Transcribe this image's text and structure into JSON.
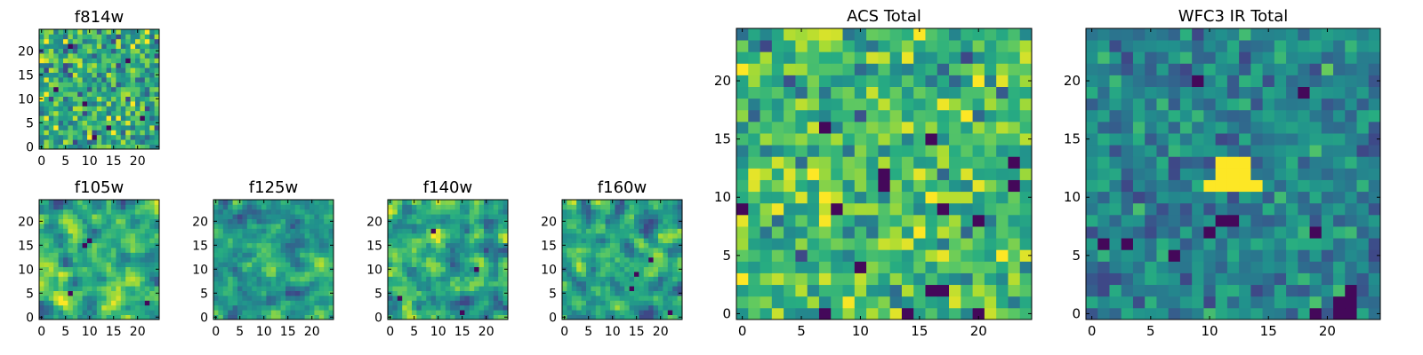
{
  "figure": {
    "description_free": true
  },
  "chart_data": [
    {
      "type": "heatmap",
      "title": "f814w",
      "grid_size": 25,
      "xlim": [
        -0.5,
        24.5
      ],
      "ylim": [
        -0.5,
        24.5
      ],
      "xticks": [
        0,
        5,
        10,
        15,
        20
      ],
      "yticks": [
        0,
        5,
        10,
        15,
        20
      ],
      "colormap": "viridis",
      "texture": "fine-noise",
      "seed": 11,
      "mean": 0.62,
      "std": 0.18,
      "smooth": 0,
      "dark_pixels": [
        [
          3,
          12
        ],
        [
          9,
          9
        ],
        [
          14,
          4
        ],
        [
          21,
          6
        ],
        [
          6,
          21
        ],
        [
          18,
          18
        ],
        [
          11,
          2
        ]
      ]
    },
    {
      "type": "heatmap",
      "title": "f105w",
      "grid_size": 25,
      "xlim": [
        -0.5,
        24.5
      ],
      "ylim": [
        -0.5,
        24.5
      ],
      "xticks": [
        0,
        5,
        10,
        15,
        20
      ],
      "yticks": [
        0,
        5,
        10,
        15,
        20
      ],
      "colormap": "viridis",
      "texture": "smooth-noise",
      "seed": 23,
      "mean": 0.62,
      "std": 0.2,
      "smooth": 1,
      "dark_pixels": [
        [
          9,
          15
        ],
        [
          10,
          16
        ],
        [
          22,
          3
        ],
        [
          6,
          5
        ]
      ]
    },
    {
      "type": "heatmap",
      "title": "f125w",
      "grid_size": 25,
      "xlim": [
        -0.5,
        24.5
      ],
      "ylim": [
        -0.5,
        24.5
      ],
      "xticks": [
        0,
        5,
        10,
        15,
        20
      ],
      "yticks": [
        0,
        5,
        10,
        15,
        20
      ],
      "colormap": "viridis",
      "texture": "smooth-noise",
      "seed": 37,
      "mean": 0.56,
      "std": 0.18,
      "smooth": 1,
      "dark_pixels": []
    },
    {
      "type": "heatmap",
      "title": "f140w",
      "grid_size": 25,
      "xlim": [
        -0.5,
        24.5
      ],
      "ylim": [
        -0.5,
        24.5
      ],
      "xticks": [
        0,
        5,
        10,
        15,
        20
      ],
      "yticks": [
        0,
        5,
        10,
        15,
        20
      ],
      "colormap": "viridis",
      "texture": "smooth-noise",
      "seed": 41,
      "mean": 0.6,
      "std": 0.22,
      "smooth": 1,
      "dark_pixels": [
        [
          9,
          18
        ],
        [
          2,
          4
        ],
        [
          15,
          1
        ],
        [
          18,
          10
        ]
      ]
    },
    {
      "type": "heatmap",
      "title": "f160w",
      "grid_size": 25,
      "xlim": [
        -0.5,
        24.5
      ],
      "ylim": [
        -0.5,
        24.5
      ],
      "xticks": [
        0,
        5,
        10,
        15,
        20
      ],
      "yticks": [
        0,
        5,
        10,
        15,
        20
      ],
      "colormap": "viridis",
      "texture": "smooth-noise",
      "seed": 53,
      "mean": 0.58,
      "std": 0.21,
      "smooth": 1,
      "dark_pixels": [
        [
          15,
          9
        ],
        [
          14,
          6
        ],
        [
          22,
          1
        ],
        [
          18,
          12
        ]
      ]
    },
    {
      "type": "heatmap",
      "title": "ACS Total",
      "grid_size": 25,
      "xlim": [
        -0.5,
        24.5
      ],
      "ylim": [
        -0.5,
        24.5
      ],
      "xticks": [
        0,
        5,
        10,
        15,
        20
      ],
      "yticks": [
        0,
        5,
        10,
        15,
        20
      ],
      "colormap": "viridis",
      "texture": "fine-noise",
      "seed": 67,
      "mean": 0.66,
      "std": 0.15,
      "smooth": 0,
      "dark_pixels": [
        [
          7,
          16
        ],
        [
          16,
          15
        ],
        [
          12,
          12
        ],
        [
          12,
          11
        ],
        [
          0,
          9
        ],
        [
          8,
          9
        ],
        [
          17,
          9
        ],
        [
          20,
          8
        ],
        [
          23,
          13
        ],
        [
          23,
          11
        ],
        [
          10,
          4
        ],
        [
          16,
          2
        ],
        [
          17,
          2
        ],
        [
          7,
          0
        ],
        [
          14,
          0
        ],
        [
          20,
          0
        ]
      ]
    },
    {
      "type": "heatmap",
      "title": "WFC3 IR Total",
      "grid_size": 25,
      "xlim": [
        -0.5,
        24.5
      ],
      "ylim": [
        -0.5,
        24.5
      ],
      "xticks": [
        0,
        5,
        10,
        15,
        20
      ],
      "yticks": [
        0,
        5,
        10,
        15,
        20
      ],
      "colormap": "viridis",
      "texture": "smooth-noise",
      "seed": 79,
      "mean": 0.45,
      "std": 0.12,
      "smooth": 0,
      "dark_pixels": [
        [
          1,
          6
        ],
        [
          3,
          6
        ],
        [
          7,
          5
        ],
        [
          11,
          8
        ],
        [
          12,
          8
        ],
        [
          10,
          7
        ],
        [
          19,
          7
        ],
        [
          19,
          0
        ],
        [
          21,
          1
        ],
        [
          21,
          0
        ],
        [
          22,
          0
        ],
        [
          22,
          2
        ],
        [
          22,
          1
        ],
        [
          18,
          19
        ],
        [
          9,
          20
        ]
      ],
      "bright_block": {
        "x0": 11,
        "x1": 13,
        "y0": 11,
        "y1": 13,
        "extra": [
          [
            10,
            11
          ],
          [
            14,
            11
          ]
        ]
      }
    }
  ]
}
